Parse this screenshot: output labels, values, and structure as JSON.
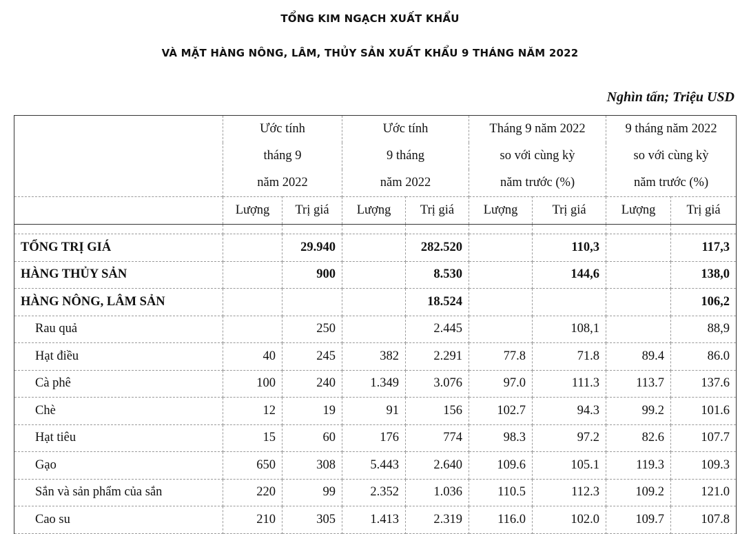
{
  "title_line1": "TỔNG KIM NGẠCH XUẤT KHẨU",
  "title_line2": "VÀ MẶT HÀNG NÔNG, LÂM, THỦY SẢN XUẤT KHẨU 9 THÁNG NĂM 2022",
  "unit": "Nghìn tấn; Triệu USD",
  "groups": [
    {
      "lines": [
        "Ước tính",
        "tháng 9",
        "năm 2022"
      ]
    },
    {
      "lines": [
        "Ước tính",
        "9 tháng",
        "năm 2022"
      ]
    },
    {
      "lines": [
        "Tháng 9 năm 2022",
        "so với cùng kỳ",
        "năm trước (%)"
      ]
    },
    {
      "lines": [
        "9 tháng năm 2022",
        "so với cùng kỳ",
        "năm trước (%)"
      ]
    }
  ],
  "subheaders": [
    "Lượng",
    "Trị giá",
    "Lượng",
    "Trị giá",
    "Lượng",
    "Trị giá",
    "Lượng",
    "Trị giá"
  ],
  "rows": [
    {
      "name": "TỔNG TRỊ GIÁ",
      "values": [
        "",
        "29.940",
        "",
        "282.520",
        "",
        "110,3",
        "",
        "117,3"
      ]
    },
    {
      "name": "HÀNG THỦY SẢN",
      "values": [
        "",
        "900",
        "",
        "8.530",
        "",
        "144,6",
        "",
        "138,0"
      ]
    },
    {
      "name": "HÀNG NÔNG, LÂM SẢN",
      "values": [
        "",
        "",
        "",
        "18.524",
        "",
        "",
        "",
        "106,2"
      ]
    },
    {
      "name": "Rau quả",
      "values": [
        "",
        "250",
        "",
        "2.445",
        "",
        "108,1",
        "",
        "88,9"
      ]
    },
    {
      "name": "Hạt điều",
      "values": [
        "40",
        "245",
        "382",
        "2.291",
        "77.8",
        "71.8",
        "89.4",
        "86.0"
      ]
    },
    {
      "name": "Cà phê",
      "values": [
        "100",
        "240",
        "1.349",
        "3.076",
        "97.0",
        "111.3",
        "113.7",
        "137.6"
      ]
    },
    {
      "name": "Chè",
      "values": [
        "12",
        "19",
        "91",
        "156",
        "102.7",
        "94.3",
        "99.2",
        "101.6"
      ]
    },
    {
      "name": "Hạt tiêu",
      "values": [
        "15",
        "60",
        "176",
        "774",
        "98.3",
        "97.2",
        "82.6",
        "107.7"
      ]
    },
    {
      "name": "Gạo",
      "values": [
        "650",
        "308",
        "5.443",
        "2.640",
        "109.6",
        "105.1",
        "119.3",
        "109.3"
      ]
    },
    {
      "name": "Sắn và sản phẩm của sắn",
      "values": [
        "220",
        "99",
        "2.352",
        "1.036",
        "110.5",
        "112.3",
        "109.2",
        "121.0"
      ]
    },
    {
      "name": "Cao su",
      "values": [
        "210",
        "305",
        "1.413",
        "2.319",
        "116.0",
        "102.0",
        "109.7",
        "107.8"
      ]
    }
  ]
}
